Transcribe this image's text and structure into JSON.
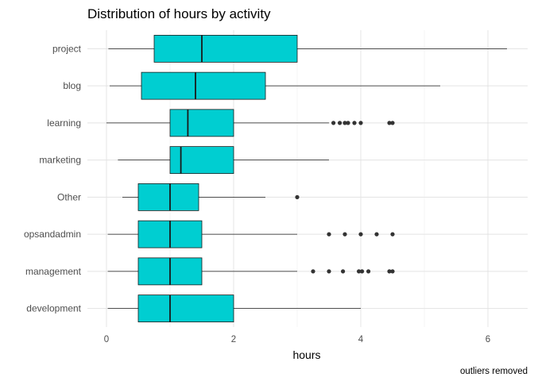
{
  "chart_data": {
    "type": "boxplot",
    "orientation": "horizontal",
    "title": "Distribution of hours by activity",
    "xlabel": "hours",
    "ylabel": "",
    "caption": "outliers removed",
    "xlim": [
      -0.3,
      6.65
    ],
    "xticks": [
      0,
      2,
      4,
      6
    ],
    "xtick_labels": [
      "0",
      "2",
      "4",
      "6"
    ],
    "grid": true,
    "box_color": "#00CED1",
    "line_color": "#1a1a1a",
    "outlier_color": "#333333",
    "categories": [
      "project",
      "blog",
      "learning",
      "marketing",
      "Other",
      "opsandadmin",
      "management",
      "development"
    ],
    "boxes": [
      {
        "min": 0.03,
        "q1": 0.75,
        "median": 1.5,
        "q3": 3.0,
        "max": 6.3,
        "outliers": []
      },
      {
        "min": 0.05,
        "q1": 0.55,
        "median": 1.4,
        "q3": 2.5,
        "max": 5.25,
        "outliers": []
      },
      {
        "min": 0.0,
        "q1": 1.0,
        "median": 1.28,
        "q3": 2.0,
        "max": 3.5,
        "outliers": [
          3.57,
          3.67,
          3.75,
          3.8,
          3.9,
          4.0,
          4.45,
          4.5
        ]
      },
      {
        "min": 0.18,
        "q1": 1.0,
        "median": 1.17,
        "q3": 2.0,
        "max": 3.5,
        "outliers": []
      },
      {
        "min": 0.25,
        "q1": 0.5,
        "median": 1.0,
        "q3": 1.45,
        "max": 2.5,
        "outliers": [
          3.0
        ]
      },
      {
        "min": 0.02,
        "q1": 0.5,
        "median": 1.0,
        "q3": 1.5,
        "max": 3.0,
        "outliers": [
          3.5,
          3.75,
          4.0,
          4.25,
          4.5
        ]
      },
      {
        "min": 0.02,
        "q1": 0.5,
        "median": 1.0,
        "q3": 1.5,
        "max": 3.0,
        "outliers": [
          3.25,
          3.5,
          3.72,
          3.97,
          4.02,
          4.12,
          4.45,
          4.5
        ]
      },
      {
        "min": 0.02,
        "q1": 0.5,
        "median": 1.0,
        "q3": 2.0,
        "max": 4.0,
        "outliers": []
      }
    ]
  }
}
